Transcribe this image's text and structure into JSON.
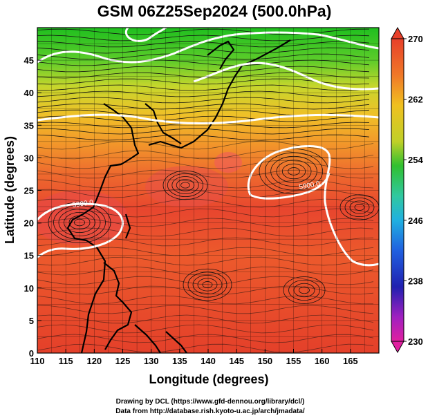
{
  "title": "GSM 06Z25Sep2024 (500.0hPa)",
  "x_axis": {
    "label": "Longitude (degrees)",
    "ticks": [
      "110",
      "115",
      "120",
      "125",
      "130",
      "135",
      "140",
      "145",
      "150",
      "155",
      "160",
      "165"
    ]
  },
  "y_axis": {
    "label": "Latitude  (degrees)",
    "ticks": [
      "0",
      "5",
      "10",
      "15",
      "20",
      "25",
      "30",
      "35",
      "40",
      "45"
    ]
  },
  "colorbar": {
    "labels": [
      "270",
      "262",
      "254",
      "246",
      "238",
      "230"
    ]
  },
  "contour_labels": [
    "5900.0",
    "5900.0"
  ],
  "credits": {
    "line1": "Drawing by DCL (https://www.gfd-dennou.org/library/dcl/)",
    "line2": "Data from http://database.rish.kyoto-u.ac.jp/arch/jmadata/"
  },
  "chart_data": {
    "type": "heatmap",
    "field": "temperature with streamlines and geopotential height contour",
    "xlim": [
      110,
      170
    ],
    "ylim": [
      0,
      50
    ],
    "colorbar_range": [
      230,
      270
    ],
    "colors": {
      "high": "#e8402a",
      "mid": "#f0c020",
      "low_green": "#22c022",
      "contour": "#ffffff",
      "streamline": "#000000"
    }
  }
}
